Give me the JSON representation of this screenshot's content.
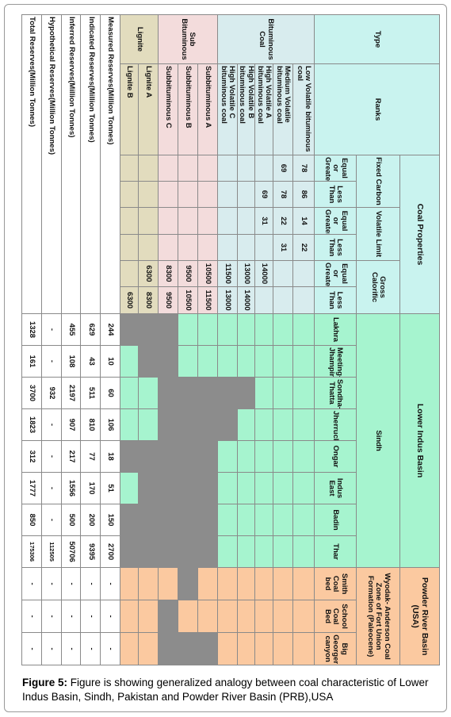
{
  "header": {
    "type": "Type",
    "ranks": "Ranks",
    "coal_properties": "Coal Properties",
    "properties": [
      "Fixed Carbon",
      "Volatile Limit",
      "Gross Calorific"
    ],
    "bounds": [
      "Equal or Greater",
      "Less Than"
    ],
    "regions": [
      {
        "basin": "Lower Indus Basin",
        "area": "Sindh",
        "sites": [
          "Lakhra",
          "Meeting-Jhampir",
          "Sondha-Thatta",
          "Jherruck",
          "Ongar",
          "Indus East",
          "Badin",
          "Thar"
        ]
      },
      {
        "basin": "Powder River Basin (USA)",
        "area": "Wyodak- Anderson Coal Zone of Fort Union Formation (Paleocene)",
        "sites": [
          "Smith Coal bed",
          "School Coal Bed",
          "Big Georger canyon"
        ]
      }
    ]
  },
  "groups": [
    {
      "type": "Bituminous Coal",
      "ranks": [
        {
          "name": "Low Volatile bituminous coal",
          "values": [
            78,
            86,
            14,
            22,
            null,
            null
          ]
        },
        {
          "name": "Medium Volatile bituminous coal",
          "values": [
            69,
            78,
            22,
            31,
            null,
            null
          ]
        },
        {
          "name": "High Volatile A bituminous coal",
          "values": [
            null,
            69,
            31,
            null,
            14000,
            null
          ]
        },
        {
          "name": "High Volatile B bituminous coal",
          "values": [
            null,
            null,
            null,
            null,
            13000,
            14000
          ]
        },
        {
          "name": "High Volatile C bituminous coal",
          "values": [
            null,
            null,
            null,
            null,
            11500,
            13000
          ]
        }
      ]
    },
    {
      "type": "Sub Bituminous",
      "ranks": [
        {
          "name": "Subbituminous A",
          "values": [
            null,
            null,
            null,
            null,
            10500,
            11500
          ]
        },
        {
          "name": "Subbituminous B",
          "values": [
            null,
            null,
            null,
            null,
            9500,
            10500
          ]
        },
        {
          "name": "Subbituminous C",
          "values": [
            null,
            null,
            null,
            null,
            8300,
            9500
          ]
        }
      ]
    },
    {
      "type": "Lignite",
      "ranks": [
        {
          "name": "Lignite A",
          "values": [
            null,
            null,
            null,
            null,
            6300,
            8300
          ]
        },
        {
          "name": "Lignite B",
          "values": [
            null,
            null,
            null,
            null,
            null,
            6300
          ]
        }
      ]
    }
  ],
  "reserves": [
    {
      "label": "Measured Reserves(Million Tonnes)",
      "values": [
        244,
        10,
        60,
        106,
        18,
        51,
        150,
        2700,
        "-",
        "-",
        "-"
      ]
    },
    {
      "label": "Indicated Reserves(Million Tonnes)",
      "values": [
        629,
        43,
        511,
        810,
        77,
        170,
        200,
        9395,
        "-",
        "-",
        "-"
      ]
    },
    {
      "label": "Inferred  Reserves(Million Tonnes)",
      "values": [
        455,
        108,
        2197,
        907,
        217,
        1556,
        500,
        50706,
        "-",
        "-",
        "-"
      ]
    },
    {
      "label": "Hypothetical Reserves(Million Tonnes)",
      "values": [
        "-",
        "-",
        932,
        "-",
        "-",
        "-",
        "-",
        112505,
        "-",
        "-",
        "-"
      ]
    },
    {
      "label": "Total Reserves(Million Tonnes)",
      "values": [
        1328,
        161,
        3700,
        1823,
        312,
        1777,
        850,
        175306,
        "-",
        "-",
        "-"
      ]
    }
  ],
  "caption": {
    "label": "Figure 5:",
    "text": " Figure is showing generalized analogy between coal characteristic of Lower Indus Basin, Sindh, Pakistan and Powder River Basin (PRB),USA"
  }
}
